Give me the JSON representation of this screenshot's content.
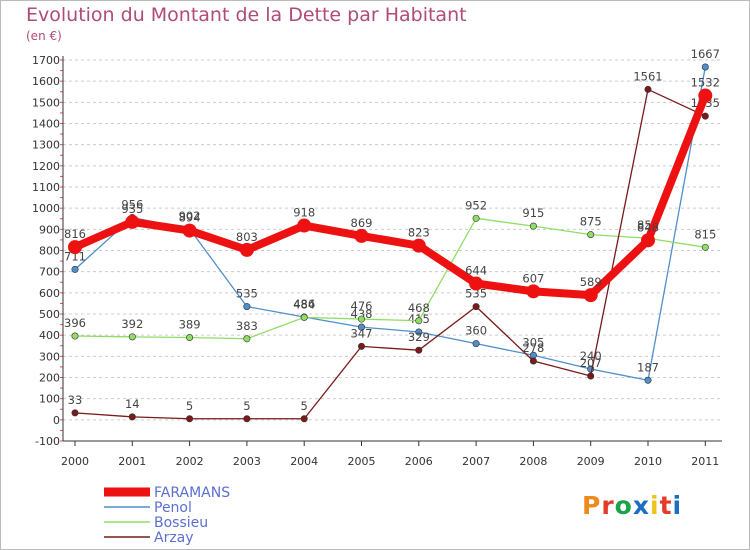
{
  "chart_data": {
    "type": "line",
    "title": "Evolution du Montant de la Dette par Habitant",
    "subtitle": "(en €)",
    "categories": [
      "2000",
      "2001",
      "2002",
      "2003",
      "2004",
      "2005",
      "2006",
      "2007",
      "2008",
      "2009",
      "2010",
      "2011"
    ],
    "ylim": [
      -100,
      1700
    ],
    "yticks": [
      -100,
      0,
      100,
      200,
      300,
      400,
      500,
      600,
      700,
      800,
      900,
      1000,
      1100,
      1200,
      1300,
      1400,
      1500,
      1600,
      1700
    ],
    "grid": "dashed-horizontal",
    "legend_position": "bottom-left",
    "series": [
      {
        "name": "FARAMANS",
        "color": "#ee1111",
        "emphasis": true,
        "values": [
          816,
          935,
          894,
          803,
          918,
          869,
          823,
          644,
          607,
          589,
          848,
          1532
        ]
      },
      {
        "name": "Penol",
        "color": "#4f8fca",
        "values": [
          711,
          956,
          902,
          535,
          486,
          438,
          415,
          360,
          305,
          240,
          187,
          1667
        ]
      },
      {
        "name": "Bossieu",
        "color": "#90dd66",
        "values": [
          396,
          392,
          389,
          383,
          484,
          476,
          468,
          952,
          915,
          875,
          858,
          815
        ]
      },
      {
        "name": "Arzay",
        "color": "#7a1a1a",
        "values": [
          33,
          14,
          5,
          5,
          5,
          347,
          329,
          535,
          278,
          207,
          1561,
          1435
        ]
      }
    ]
  },
  "brand": {
    "text": "Proxiti",
    "colors": [
      "#f08a1c",
      "#e43c2a",
      "#1ba34a",
      "#1a6fc4",
      "#f0c21c",
      "#e43c2a",
      "#1a6fc4"
    ]
  }
}
